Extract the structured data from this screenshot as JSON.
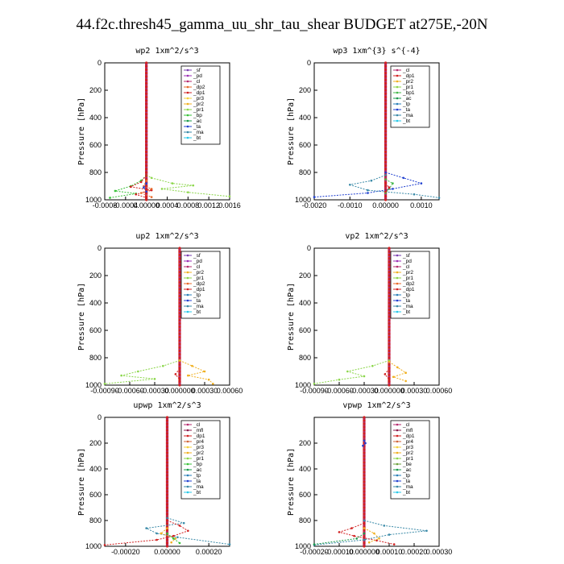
{
  "title": "44.f2c.thresh45_gamma_uu_shr_tau_shear  BUDGET at275E,-20N",
  "colors": {
    "_sf": "#7a3db0",
    "_mfl": "#8b1a4a",
    "_pd": "#9b2fb5",
    "_cl": "#b52a6e",
    "_dp1": "#d12020",
    "_dp2": "#e86a2a",
    "_pr1": "#8bd64a",
    "_pr2": "#f0b020",
    "_pr3": "#f4d03a",
    "_pr4": "#d0663a",
    "_bp": "#38c238",
    "_bp1": "#44b84a",
    "_ac": "#1a9a4a",
    "_tp": "#2a7fb8",
    "_ta": "#2040d0",
    "_ma": "#3a8aa8",
    "_bt": "#28c8e8",
    "_be": "#6aa03a"
  },
  "chart_data": [
    {
      "type": "line",
      "title": "wp2   1xm^2/s^3",
      "ylabel": "Pressure  [hPa]",
      "ylim": [
        1000,
        0
      ],
      "xlim": [
        -0.0008,
        0.0016
      ],
      "xticks": [
        "-0.0008",
        "-0.0004",
        "0.00000",
        "0.0004",
        "0.0008",
        "0.0012",
        "0.0016"
      ],
      "yticks": [
        "0",
        "200",
        "400",
        "600",
        "800",
        "1000"
      ],
      "legend": [
        "_sf",
        "_pd",
        "_cl",
        "_dp2",
        "_dp1",
        "_pr3",
        "_pr2",
        "_pr1",
        "_bp",
        "_ac",
        "_ta",
        "_ma",
        "_bt"
      ],
      "series": [
        {
          "name": "_pr1",
          "points": [
            [
              0,
              820
            ],
            [
              0.0001,
              840
            ],
            [
              0.0005,
              880
            ],
            [
              0.0009,
              895
            ],
            [
              0.0003,
              920
            ],
            [
              0.0008,
              945
            ],
            [
              0.0016,
              975
            ]
          ]
        },
        {
          "name": "_bp",
          "points": [
            [
              0,
              820
            ],
            [
              -0.0001,
              860
            ],
            [
              -0.0003,
              900
            ],
            [
              -0.0006,
              935
            ],
            [
              -0.0002,
              955
            ],
            [
              -0.0007,
              985
            ]
          ]
        },
        {
          "name": "_dp1",
          "points": [
            [
              0,
              820
            ],
            [
              -0.0001,
              870
            ],
            [
              -0.0003,
              905
            ],
            [
              0.0001,
              930
            ],
            [
              -0.0002,
              960
            ],
            [
              0,
              985
            ]
          ]
        },
        {
          "name": "_dp2",
          "points": [
            [
              0,
              860
            ],
            [
              -5e-05,
              900
            ],
            [
              0.0001,
              920
            ],
            [
              -0.0001,
              950
            ],
            [
              0.0001,
              980
            ]
          ]
        },
        {
          "name": "_ta",
          "points": [
            [
              0,
              880
            ],
            [
              -5e-05,
              910
            ],
            [
              0,
              940
            ]
          ]
        }
      ]
    },
    {
      "type": "line",
      "title": "wp3   1xm^{3} s^{-4}",
      "ylabel": "Pressure  [hPa]",
      "ylim": [
        1000,
        0
      ],
      "xlim": [
        -0.002,
        0.0015
      ],
      "xticks": [
        "-0.0020",
        "-0.0010",
        "0.00000",
        "0.0010"
      ],
      "yticks": [
        "0",
        "200",
        "400",
        "600",
        "800",
        "1000"
      ],
      "legend": [
        "_cl",
        "_dp1",
        "_pr2",
        "_pr1",
        "_bp1",
        "_ac",
        "_tp",
        "_ta",
        "_ma",
        "_bt"
      ],
      "series": [
        {
          "name": "_ta",
          "points": [
            [
              0,
              800
            ],
            [
              0.0005,
              840
            ],
            [
              0.001,
              880
            ],
            [
              0.0002,
              920
            ],
            [
              -0.0005,
              950
            ],
            [
              -0.002,
              980
            ]
          ]
        },
        {
          "name": "_ma",
          "points": [
            [
              0,
              820
            ],
            [
              -0.0004,
              860
            ],
            [
              -0.001,
              890
            ],
            [
              -0.0005,
              930
            ],
            [
              0.0008,
              960
            ],
            [
              0.0015,
              985
            ]
          ]
        },
        {
          "name": "_bp1",
          "points": [
            [
              0,
              850
            ],
            [
              0.0002,
              880
            ],
            [
              0.0001,
              920
            ],
            [
              0,
              950
            ]
          ]
        },
        {
          "name": "_dp1",
          "points": [
            [
              0,
              880
            ],
            [
              0.0001,
              910
            ],
            [
              0,
              940
            ]
          ]
        }
      ]
    },
    {
      "type": "line",
      "title": "up2   1xm^2/s^3",
      "ylabel": "Pressure  [hPa]",
      "ylim": [
        1000,
        0
      ],
      "xlim": [
        -0.0009,
        0.0006
      ],
      "xticks": [
        "-0.00090",
        "-0.00060",
        "-0.00030",
        "0.000000",
        "0.00030",
        "0.00060"
      ],
      "yticks": [
        "0",
        "200",
        "400",
        "600",
        "800",
        "1000"
      ],
      "legend": [
        "_sf",
        "_pd",
        "_cl",
        "_pr2",
        "_pr1",
        "_dp2",
        "_dp1",
        "_tp",
        "_ta",
        "_ma",
        "_bt"
      ],
      "series": [
        {
          "name": "_pr1",
          "points": [
            [
              0,
              820
            ],
            [
              -0.0002,
              860
            ],
            [
              -0.0005,
              900
            ],
            [
              -0.0007,
              930
            ],
            [
              -0.0003,
              955
            ],
            [
              -0.0009,
              990
            ]
          ]
        },
        {
          "name": "_pr2",
          "points": [
            [
              0,
              820
            ],
            [
              0.00015,
              860
            ],
            [
              0.0003,
              900
            ],
            [
              0.0001,
              930
            ],
            [
              0.00035,
              960
            ],
            [
              0.0004,
              990
            ]
          ]
        },
        {
          "name": "_dp1",
          "points": [
            [
              0,
              880
            ],
            [
              -5e-05,
              920
            ],
            [
              0,
              960
            ]
          ]
        }
      ]
    },
    {
      "type": "line",
      "title": "vp2   1xm^2/s^3",
      "ylabel": "Pressure  [hPa]",
      "ylim": [
        1000,
        0
      ],
      "xlim": [
        -0.0009,
        0.0006
      ],
      "xticks": [
        "-0.00090",
        "-0.00060",
        "-0.00030",
        "0.000000",
        "0.00030",
        "0.00060"
      ],
      "yticks": [
        "0",
        "200",
        "400",
        "600",
        "800",
        "1000"
      ],
      "legend": [
        "_sf",
        "_pd",
        "_cl",
        "_pr2",
        "_pr1",
        "_dp2",
        "_dp1",
        "_tp",
        "_ta",
        "_ma",
        "_bt"
      ],
      "series": [
        {
          "name": "_pr1",
          "points": [
            [
              0,
              820
            ],
            [
              -0.0002,
              860
            ],
            [
              -0.0005,
              900
            ],
            [
              -0.0003,
              935
            ],
            [
              -0.0006,
              960
            ],
            [
              -0.0009,
              990
            ]
          ]
        },
        {
          "name": "_pr2",
          "points": [
            [
              0,
              830
            ],
            [
              0.0001,
              870
            ],
            [
              0.0002,
              910
            ],
            [
              5e-05,
              940
            ],
            [
              0.0002,
              970
            ]
          ]
        },
        {
          "name": "_dp1",
          "points": [
            [
              0,
              880
            ],
            [
              -5e-05,
              920
            ],
            [
              0,
              960
            ]
          ]
        }
      ]
    },
    {
      "type": "line",
      "title": "upwp   1xm^2/s^3",
      "ylabel": "Pressure  [hPa]",
      "ylim": [
        1000,
        0
      ],
      "xlim": [
        -0.0003,
        0.0003
      ],
      "xticks": [
        "-0.00020",
        "0.00000",
        "0.00020"
      ],
      "yticks": [
        "0",
        "200",
        "400",
        "600",
        "800",
        "1000"
      ],
      "legend": [
        "_cl",
        "_mfl",
        "_dp1",
        "_pr4",
        "_pr3",
        "_pr2",
        "_pr1",
        "_bp",
        "_ac",
        "_tp",
        "_ta",
        "_ma",
        "_bt"
      ],
      "series": [
        {
          "name": "_ma",
          "points": [
            [
              0,
              780
            ],
            [
              8e-05,
              820
            ],
            [
              -0.0001,
              860
            ],
            [
              -5e-05,
              900
            ],
            [
              5e-05,
              930
            ],
            [
              0.0003,
              985
            ]
          ]
        },
        {
          "name": "_dp1",
          "points": [
            [
              0,
              800
            ],
            [
              6e-05,
              840
            ],
            [
              0.0001,
              880
            ],
            [
              3e-05,
              920
            ],
            [
              -5e-05,
              950
            ],
            [
              -0.0003,
              990
            ]
          ]
        },
        {
          "name": "_pr2",
          "points": [
            [
              0,
              860
            ],
            [
              -3e-05,
              900
            ],
            [
              4e-05,
              940
            ],
            [
              2e-05,
              970
            ]
          ]
        },
        {
          "name": "_bp",
          "points": [
            [
              0,
              900
            ],
            [
              3e-05,
              940
            ],
            [
              6e-05,
              975
            ]
          ]
        }
      ]
    },
    {
      "type": "line",
      "title": "vpwp   1xm^2/s^3",
      "ylabel": "Pressure  [hPa]",
      "ylim": [
        1000,
        0
      ],
      "xlim": [
        -0.0002,
        0.0003
      ],
      "xticks": [
        "-0.00020",
        "-0.00010",
        "0.000000",
        "0.00010",
        "0.00020",
        "0.00030"
      ],
      "yticks": [
        "200",
        "400",
        "600",
        "800",
        "1000"
      ],
      "legend": [
        "_cl",
        "_mfl",
        "_dp1",
        "_pr4",
        "_pr3",
        "_pr2",
        "_pr1",
        "_be",
        "_ac",
        "_tp",
        "_ta",
        "_ma",
        "_bt"
      ],
      "series": [
        {
          "name": "_ma",
          "points": [
            [
              0,
              800
            ],
            [
              8e-05,
              840
            ],
            [
              0.00025,
              880
            ],
            [
              0.0001,
              910
            ],
            [
              0,
              950
            ],
            [
              -0.0002,
              990
            ]
          ]
        },
        {
          "name": "_dp1",
          "points": [
            [
              0,
              820
            ],
            [
              -5e-05,
              860
            ],
            [
              -0.0001,
              890
            ],
            [
              -4e-05,
              920
            ],
            [
              5e-05,
              955
            ],
            [
              0.00012,
              985
            ]
          ]
        },
        {
          "name": "_pr2",
          "points": [
            [
              0,
              860
            ],
            [
              4e-05,
              900
            ],
            [
              6e-05,
              940
            ],
            [
              2e-05,
              970
            ]
          ]
        },
        {
          "name": "_ac",
          "points": [
            [
              0,
              900
            ],
            [
              -3e-05,
              940
            ],
            [
              -0.0002,
              985
            ]
          ]
        },
        {
          "name": "_ta",
          "points": [
            [
              0,
              180
            ],
            [
              5e-06,
              200
            ],
            [
              -5e-06,
              220
            ]
          ]
        }
      ]
    }
  ]
}
